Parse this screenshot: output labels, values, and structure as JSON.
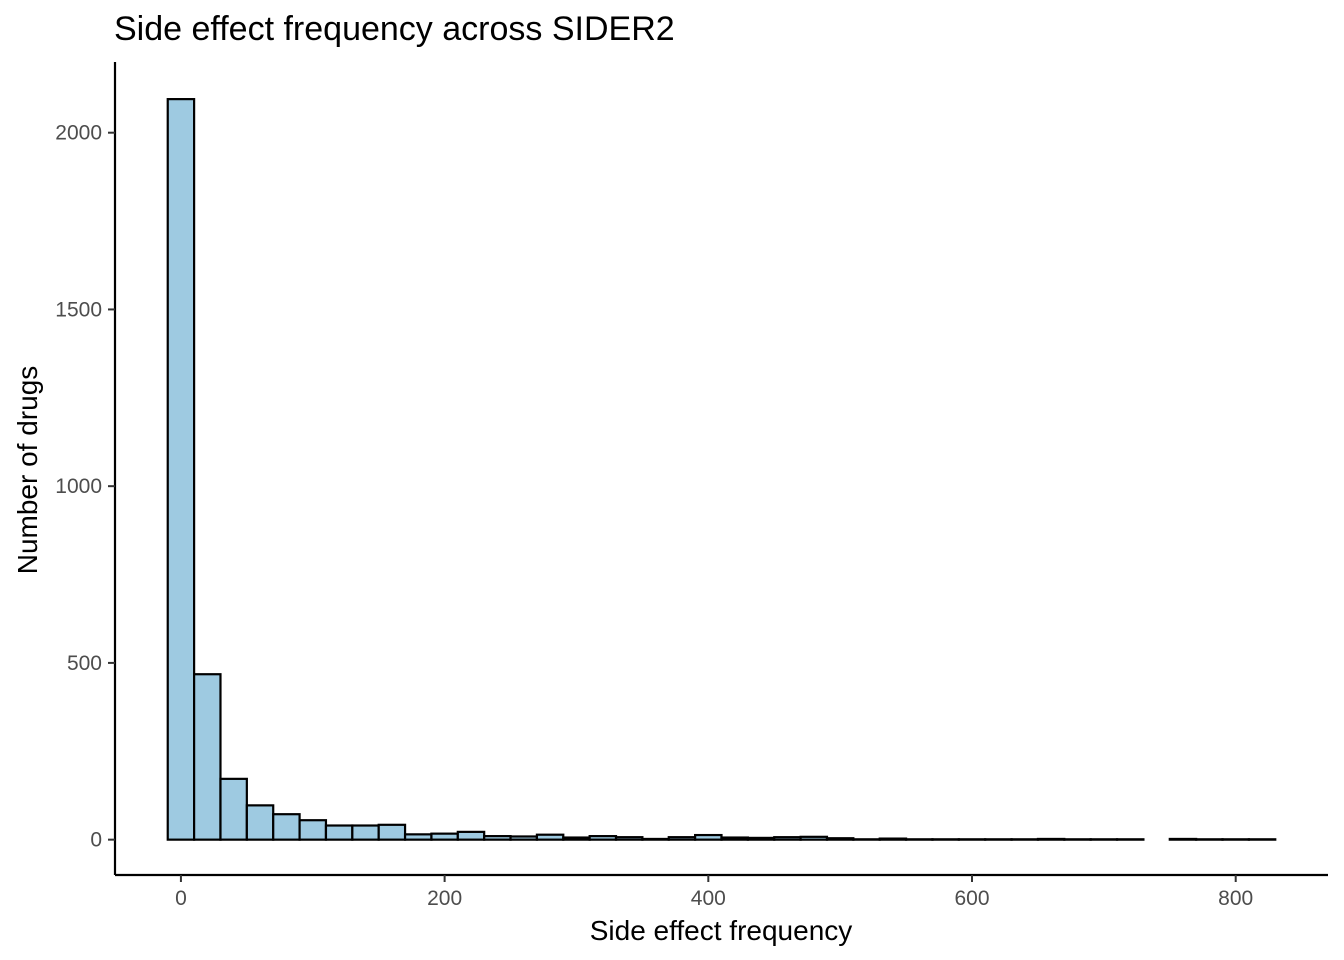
{
  "chart_data": {
    "type": "bar",
    "title": "Side effect frequency across SIDER2",
    "xlabel": "Side effect frequency",
    "ylabel": "Number of drugs",
    "xlim": [
      -50,
      870
    ],
    "ylim": [
      -100,
      2200
    ],
    "bin_width": 20,
    "x_ticks": [
      {
        "value": 0,
        "label": "0"
      },
      {
        "value": 200,
        "label": "200"
      },
      {
        "value": 400,
        "label": "400"
      },
      {
        "value": 600,
        "label": "600"
      },
      {
        "value": 800,
        "label": "800"
      }
    ],
    "y_ticks": [
      {
        "value": 0,
        "label": "0"
      },
      {
        "value": 500,
        "label": "500"
      },
      {
        "value": 1000,
        "label": "1000"
      },
      {
        "value": 1500,
        "label": "1500"
      },
      {
        "value": 2000,
        "label": "2000"
      }
    ],
    "bin_centers": [
      0,
      20,
      40,
      60,
      80,
      100,
      120,
      140,
      160,
      180,
      200,
      220,
      240,
      260,
      280,
      300,
      320,
      340,
      360,
      380,
      400,
      420,
      440,
      460,
      480,
      500,
      520,
      540,
      560,
      580,
      600,
      620,
      640,
      660,
      680,
      700,
      720,
      740,
      760,
      780,
      800,
      820
    ],
    "values": [
      2095,
      468,
      172,
      97,
      72,
      55,
      40,
      40,
      42,
      15,
      17,
      22,
      10,
      9,
      14,
      6,
      10,
      7,
      2,
      7,
      13,
      6,
      5,
      7,
      8,
      4,
      1,
      3,
      1,
      1,
      1,
      1,
      1,
      2,
      1,
      1,
      1,
      0,
      2,
      1,
      1,
      1
    ],
    "fill_color": "#9ecae1",
    "stroke_color": "#000000",
    "grid": false,
    "legend": "none"
  }
}
